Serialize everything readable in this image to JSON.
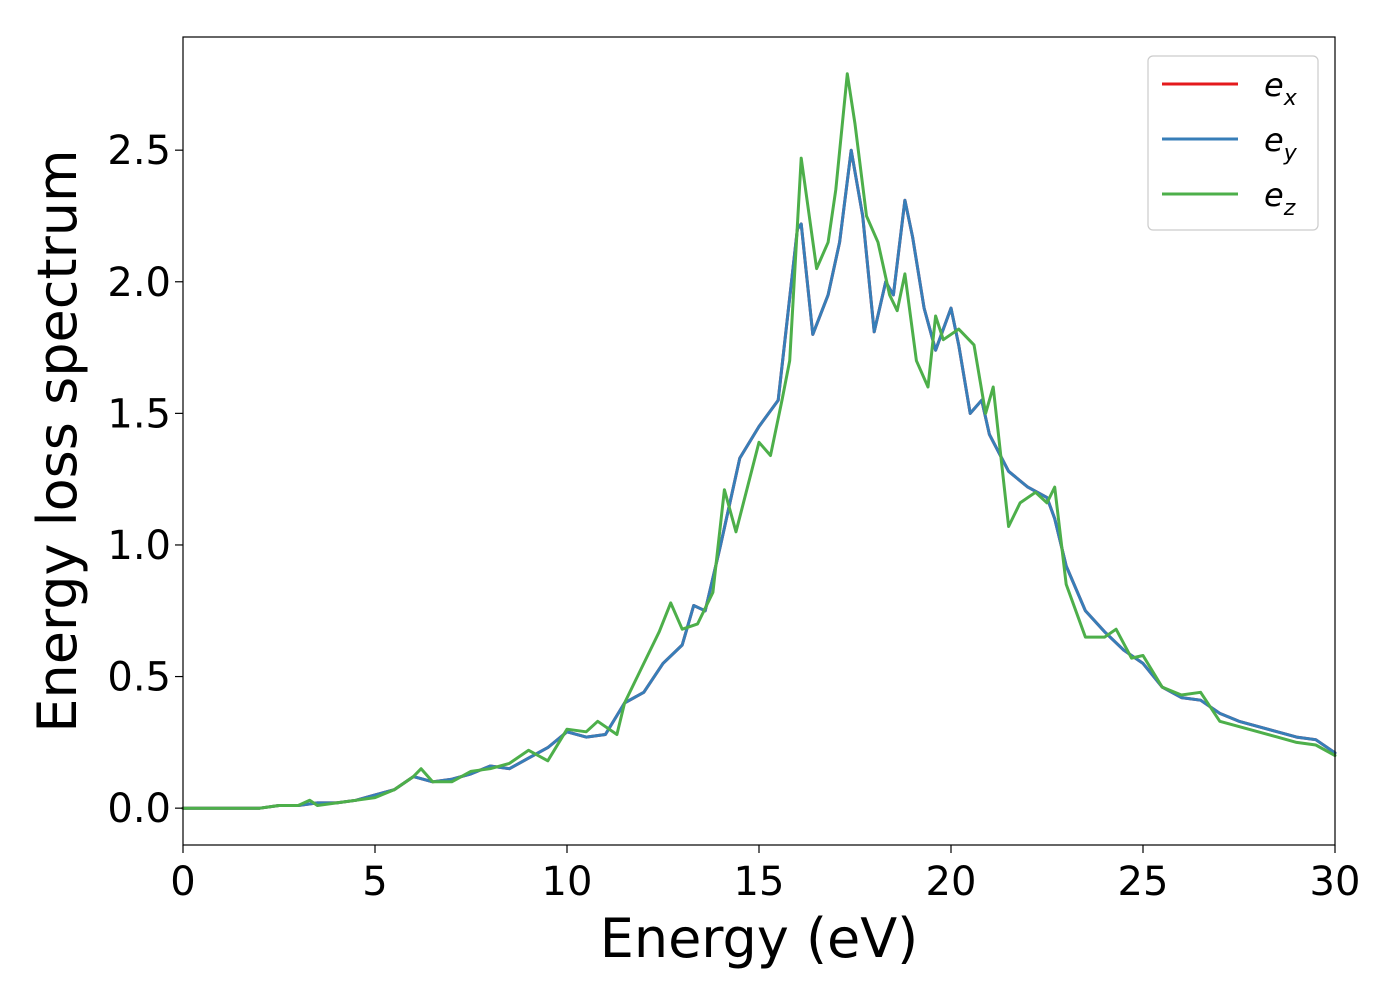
{
  "chart_data": {
    "type": "line",
    "title": "",
    "xlabel": "Energy (eV)",
    "ylabel": "Energy loss spectrum",
    "xlim": [
      0,
      30
    ],
    "ylim": [
      -0.14,
      2.93
    ],
    "xticks": [
      0,
      5,
      10,
      15,
      20,
      25,
      30
    ],
    "xtick_labels": [
      "0",
      "5",
      "10",
      "15",
      "20",
      "25",
      "30"
    ],
    "yticks": [
      0.0,
      0.5,
      1.0,
      1.5,
      2.0,
      2.5
    ],
    "ytick_labels": [
      "0.0",
      "0.5",
      "1.0",
      "1.5",
      "2.0",
      "2.5"
    ],
    "grid": false,
    "legend_position": "top-right",
    "series": [
      {
        "name": "e",
        "subscript": "x",
        "color": "#e41a1c",
        "x": [
          0,
          1,
          2,
          2.5,
          3,
          3.5,
          4,
          4.5,
          5,
          5.5,
          6,
          6.5,
          7,
          7.5,
          8,
          8.5,
          9,
          9.5,
          10,
          10.5,
          11,
          11.5,
          12,
          12.5,
          13,
          13.3,
          13.6,
          14,
          14.5,
          15,
          15.5,
          16,
          16.1,
          16.4,
          16.8,
          17.1,
          17.4,
          17.7,
          18,
          18.3,
          18.5,
          18.8,
          19,
          19.3,
          19.6,
          20,
          20.2,
          20.5,
          20.8,
          21,
          21.5,
          22,
          22.5,
          22.7,
          23,
          23.5,
          24,
          24.5,
          25,
          25.5,
          26,
          26.5,
          27,
          27.5,
          28,
          28.5,
          29,
          29.5,
          30
        ],
        "y": [
          0.0,
          0.0,
          0.0,
          0.01,
          0.01,
          0.02,
          0.02,
          0.03,
          0.05,
          0.07,
          0.12,
          0.1,
          0.11,
          0.13,
          0.16,
          0.15,
          0.19,
          0.23,
          0.29,
          0.27,
          0.28,
          0.4,
          0.44,
          0.55,
          0.62,
          0.77,
          0.75,
          1.0,
          1.33,
          1.45,
          1.55,
          2.2,
          2.22,
          1.8,
          1.95,
          2.15,
          2.5,
          2.25,
          1.81,
          2.0,
          1.95,
          2.31,
          2.17,
          1.9,
          1.74,
          1.9,
          1.76,
          1.5,
          1.55,
          1.42,
          1.28,
          1.22,
          1.18,
          1.1,
          0.92,
          0.75,
          0.67,
          0.6,
          0.55,
          0.46,
          0.42,
          0.41,
          0.36,
          0.33,
          0.31,
          0.29,
          0.27,
          0.26,
          0.21
        ]
      },
      {
        "name": "e",
        "subscript": "y",
        "color": "#377eb8",
        "x": [
          0,
          1,
          2,
          2.5,
          3,
          3.5,
          4,
          4.5,
          5,
          5.5,
          6,
          6.5,
          7,
          7.5,
          8,
          8.5,
          9,
          9.5,
          10,
          10.5,
          11,
          11.5,
          12,
          12.5,
          13,
          13.3,
          13.6,
          14,
          14.5,
          15,
          15.5,
          16,
          16.1,
          16.4,
          16.8,
          17.1,
          17.4,
          17.7,
          18,
          18.3,
          18.5,
          18.8,
          19,
          19.3,
          19.6,
          20,
          20.2,
          20.5,
          20.8,
          21,
          21.5,
          22,
          22.5,
          22.7,
          23,
          23.5,
          24,
          24.5,
          25,
          25.5,
          26,
          26.5,
          27,
          27.5,
          28,
          28.5,
          29,
          29.5,
          30
        ],
        "y": [
          0.0,
          0.0,
          0.0,
          0.01,
          0.01,
          0.02,
          0.02,
          0.03,
          0.05,
          0.07,
          0.12,
          0.1,
          0.11,
          0.13,
          0.16,
          0.15,
          0.19,
          0.23,
          0.29,
          0.27,
          0.28,
          0.4,
          0.44,
          0.55,
          0.62,
          0.77,
          0.75,
          1.0,
          1.33,
          1.45,
          1.55,
          2.2,
          2.22,
          1.8,
          1.95,
          2.15,
          2.5,
          2.25,
          1.81,
          2.0,
          1.95,
          2.31,
          2.17,
          1.9,
          1.74,
          1.9,
          1.76,
          1.5,
          1.55,
          1.42,
          1.28,
          1.22,
          1.18,
          1.1,
          0.92,
          0.75,
          0.67,
          0.6,
          0.55,
          0.46,
          0.42,
          0.41,
          0.36,
          0.33,
          0.31,
          0.29,
          0.27,
          0.26,
          0.21
        ]
      },
      {
        "name": "e",
        "subscript": "z",
        "color": "#4daf4a",
        "x": [
          0,
          1,
          2,
          2.5,
          3,
          3.3,
          3.5,
          4,
          4.5,
          5,
          5.5,
          6,
          6.2,
          6.5,
          7,
          7.5,
          8,
          8.5,
          9,
          9.5,
          10,
          10.5,
          10.8,
          11.3,
          11.5,
          12,
          12.4,
          12.7,
          13,
          13.4,
          13.8,
          14.1,
          14.4,
          15,
          15.3,
          15.6,
          15.8,
          16.1,
          16.5,
          16.8,
          17.0,
          17.3,
          17.5,
          17.8,
          18.1,
          18.4,
          18.6,
          18.8,
          19.1,
          19.4,
          19.6,
          19.8,
          20.2,
          20.6,
          20.9,
          21.1,
          21.5,
          21.8,
          22.2,
          22.5,
          22.7,
          23,
          23.5,
          24,
          24.3,
          24.7,
          25,
          25.5,
          26,
          26.5,
          27,
          27.5,
          28,
          28.5,
          29,
          29.5,
          30
        ],
        "y": [
          0.0,
          0.0,
          0.0,
          0.01,
          0.01,
          0.03,
          0.01,
          0.02,
          0.03,
          0.04,
          0.07,
          0.12,
          0.15,
          0.1,
          0.1,
          0.14,
          0.15,
          0.17,
          0.22,
          0.18,
          0.3,
          0.29,
          0.33,
          0.28,
          0.4,
          0.55,
          0.67,
          0.78,
          0.68,
          0.7,
          0.82,
          1.21,
          1.05,
          1.39,
          1.34,
          1.55,
          1.7,
          2.47,
          2.05,
          2.15,
          2.35,
          2.79,
          2.6,
          2.25,
          2.15,
          1.95,
          1.89,
          2.03,
          1.7,
          1.6,
          1.87,
          1.78,
          1.82,
          1.76,
          1.5,
          1.6,
          1.07,
          1.16,
          1.2,
          1.16,
          1.22,
          0.85,
          0.65,
          0.65,
          0.68,
          0.57,
          0.58,
          0.46,
          0.43,
          0.44,
          0.33,
          0.31,
          0.29,
          0.27,
          0.25,
          0.24,
          0.2
        ]
      }
    ]
  }
}
